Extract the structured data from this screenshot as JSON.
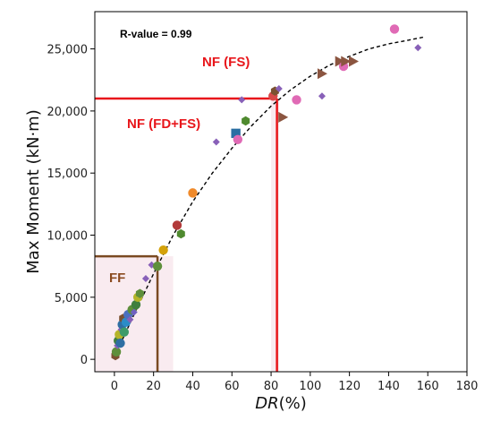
{
  "chart_data": {
    "type": "scatter",
    "title": "",
    "xlabel": "DR(%)",
    "xlabel_italic_part": "DR",
    "xlabel_rest": "(%)",
    "ylabel": "Max Moment (kN·m)",
    "xlim": [
      -10,
      180
    ],
    "ylim": [
      -1000,
      28000
    ],
    "x_ticks": [
      0,
      20,
      40,
      60,
      80,
      100,
      120,
      140,
      160,
      180
    ],
    "y_ticks": [
      0,
      5000,
      10000,
      15000,
      20000,
      25000
    ],
    "x_tick_labels": [
      "0",
      "20",
      "40",
      "60",
      "80",
      "100",
      "120",
      "140",
      "160",
      "180"
    ],
    "y_tick_labels": [
      "0",
      "5,000",
      "10,000",
      "15,000",
      "20,000",
      "25,000"
    ],
    "grid": false,
    "annotations": {
      "r_value": "R-value = 0.99",
      "nf_fs": "NF (FS)",
      "nf_fdfs": "NF (FD+FS)",
      "ff": "FF"
    },
    "threshold_lines": [
      {
        "label": "NF",
        "color": "#e8161b",
        "x": 83,
        "y": 21000
      },
      {
        "label": "FF",
        "color": "#7a4a22",
        "x": 22,
        "y": 8300
      }
    ],
    "shaded_regions": [
      {
        "color": "#f7e3ea",
        "x_range": [
          -10,
          30
        ],
        "y_range": [
          -1000,
          8300
        ]
      },
      {
        "color": "#f7e3ea",
        "x_range": [
          80,
          84
        ],
        "y_range": [
          -1000,
          21000
        ]
      }
    ],
    "fit_curve": {
      "style": "dashed",
      "color": "#000000",
      "x": [
        0,
        10,
        20,
        30,
        40,
        50,
        60,
        70,
        80,
        90,
        100,
        110,
        120,
        130,
        140,
        150,
        158
      ],
      "y": [
        200,
        3600,
        6900,
        10000,
        12700,
        15000,
        17000,
        18800,
        20400,
        21700,
        22800,
        23700,
        24400,
        25000,
        25400,
        25700,
        25950
      ]
    },
    "points": [
      {
        "x": 0.5,
        "y": 300,
        "shape": "hexagon",
        "color": "#7b5131"
      },
      {
        "x": 1,
        "y": 600,
        "shape": "circle",
        "color": "#5e8f3b"
      },
      {
        "x": 1.5,
        "y": 1100,
        "shape": "diamond",
        "color": "#8860b8"
      },
      {
        "x": 2,
        "y": 1500,
        "shape": "circle",
        "color": "#3f7f3f"
      },
      {
        "x": 2.5,
        "y": 2000,
        "shape": "circle",
        "color": "#b5b52a"
      },
      {
        "x": 3,
        "y": 1300,
        "shape": "circle",
        "color": "#2f6fa3"
      },
      {
        "x": 3.5,
        "y": 2400,
        "shape": "diamond",
        "color": "#8860b8"
      },
      {
        "x": 4,
        "y": 2800,
        "shape": "circle",
        "color": "#2f6fa3"
      },
      {
        "x": 4.5,
        "y": 3300,
        "shape": "hexagon",
        "color": "#7b5131"
      },
      {
        "x": 5,
        "y": 2200,
        "shape": "circle",
        "color": "#3d9b6a"
      },
      {
        "x": 6,
        "y": 3000,
        "shape": "circle",
        "color": "#2b8cc7"
      },
      {
        "x": 7,
        "y": 3600,
        "shape": "circle",
        "color": "#4b6fc0"
      },
      {
        "x": 8,
        "y": 3200,
        "shape": "diamond",
        "color": "#8860b8"
      },
      {
        "x": 9,
        "y": 4000,
        "shape": "circle",
        "color": "#5e8f3b"
      },
      {
        "x": 10,
        "y": 3800,
        "shape": "diamond",
        "color": "#7060c0"
      },
      {
        "x": 11,
        "y": 4400,
        "shape": "circle",
        "color": "#3f7f3f"
      },
      {
        "x": 12,
        "y": 5000,
        "shape": "circle",
        "color": "#b5b52a"
      },
      {
        "x": 13,
        "y": 5300,
        "shape": "hexagon",
        "color": "#5e8f3b"
      },
      {
        "x": 16,
        "y": 6500,
        "shape": "diamond",
        "color": "#8860b8"
      },
      {
        "x": 19,
        "y": 7600,
        "shape": "diamond",
        "color": "#8860b8"
      },
      {
        "x": 22,
        "y": 7500,
        "shape": "circle",
        "color": "#5e8f3b"
      },
      {
        "x": 25,
        "y": 8800,
        "shape": "circle",
        "color": "#d4a20b"
      },
      {
        "x": 32,
        "y": 10800,
        "shape": "circle",
        "color": "#b23a3a"
      },
      {
        "x": 34,
        "y": 10100,
        "shape": "hexagon",
        "color": "#4f8a2f"
      },
      {
        "x": 40,
        "y": 13400,
        "shape": "circle",
        "color": "#f08a2a"
      },
      {
        "x": 52,
        "y": 17500,
        "shape": "diamond",
        "color": "#8860b8"
      },
      {
        "x": 62,
        "y": 18200,
        "shape": "square",
        "color": "#2a6ea3"
      },
      {
        "x": 63,
        "y": 17700,
        "shape": "circle",
        "color": "#e06ab5"
      },
      {
        "x": 65,
        "y": 20900,
        "shape": "diamond",
        "color": "#8860b8"
      },
      {
        "x": 67,
        "y": 19200,
        "shape": "hexagon",
        "color": "#4f8a2f"
      },
      {
        "x": 81,
        "y": 21200,
        "shape": "circle",
        "color": "#d84a4a"
      },
      {
        "x": 82,
        "y": 21600,
        "shape": "hexagon",
        "color": "#7b5131"
      },
      {
        "x": 84,
        "y": 21800,
        "shape": "diamond",
        "color": "#8860b8"
      },
      {
        "x": 86,
        "y": 19500,
        "shape": "triangle-right",
        "color": "#8b5540"
      },
      {
        "x": 93,
        "y": 20900,
        "shape": "circle",
        "color": "#e06ab5"
      },
      {
        "x": 106,
        "y": 23000,
        "shape": "triangle-right",
        "color": "#8b5540"
      },
      {
        "x": 106,
        "y": 21200,
        "shape": "diamond",
        "color": "#8860b8"
      },
      {
        "x": 115,
        "y": 24000,
        "shape": "triangle-right",
        "color": "#8b5540"
      },
      {
        "x": 117,
        "y": 23600,
        "shape": "circle",
        "color": "#e06ab5"
      },
      {
        "x": 118,
        "y": 24000,
        "shape": "triangle-right",
        "color": "#8b5540"
      },
      {
        "x": 122,
        "y": 24000,
        "shape": "triangle-right",
        "color": "#8b5540"
      },
      {
        "x": 143,
        "y": 26600,
        "shape": "circle",
        "color": "#e06ab5"
      },
      {
        "x": 155,
        "y": 25100,
        "shape": "diamond",
        "color": "#8860b8"
      }
    ]
  }
}
